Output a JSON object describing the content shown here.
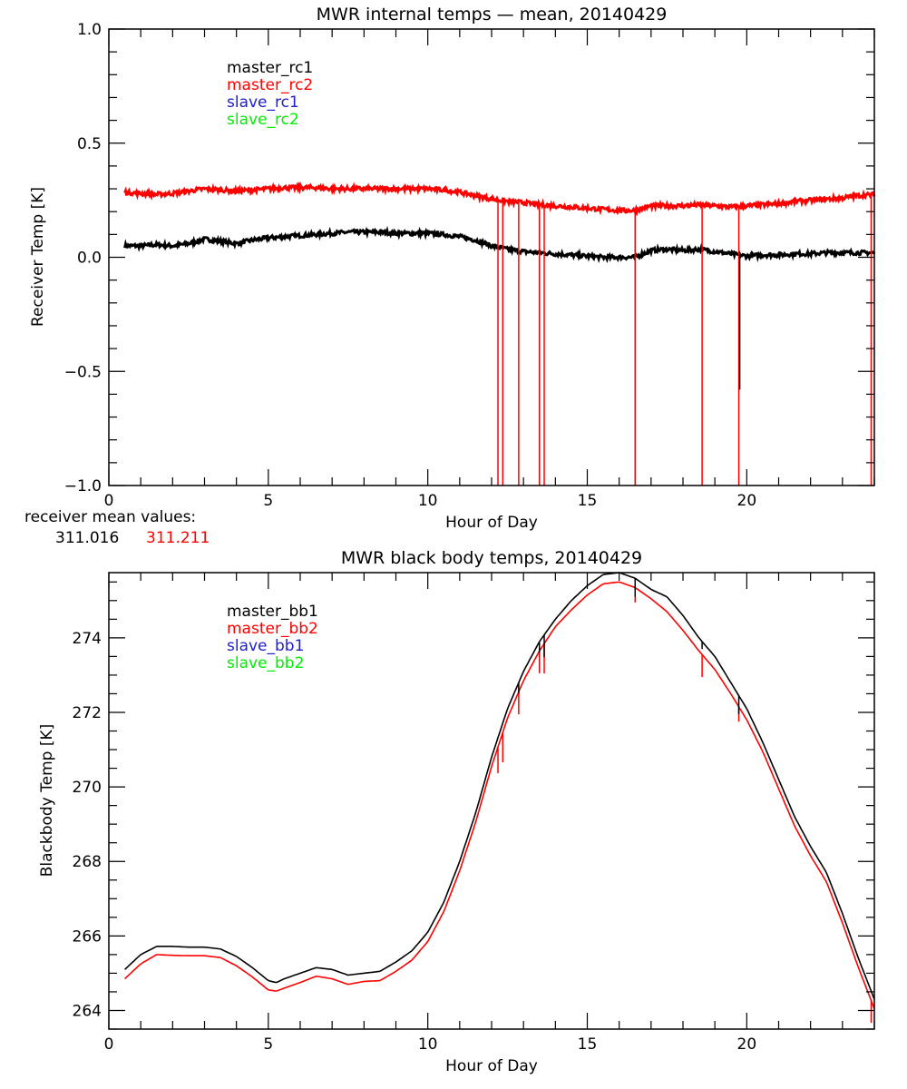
{
  "chart_data": [
    {
      "type": "line",
      "title": "MWR internal temps — mean, 20140429",
      "xlabel": "Hour of Day",
      "ylabel": "Receiver Temp [K]",
      "xlim": [
        0,
        24
      ],
      "ylim": [
        -1.0,
        1.0
      ],
      "xticks": [
        0,
        5,
        10,
        15,
        20
      ],
      "xtick_labels": [
        "0",
        "5",
        "10",
        "15",
        "20"
      ],
      "yticks": [
        -1.0,
        -0.5,
        0.0,
        0.5,
        1.0
      ],
      "ytick_labels": [
        "−1.0",
        "−0.5",
        "0.0",
        "0.5",
        "1.0"
      ],
      "grid": false,
      "legend_position": "top-left",
      "legend": [
        {
          "name": "master_rc1",
          "color": "#000000"
        },
        {
          "name": "master_rc2",
          "color": "#ff0000"
        },
        {
          "name": "slave_rc1",
          "color": "#2020d0"
        },
        {
          "name": "slave_rc2",
          "color": "#00ee00"
        }
      ],
      "series": [
        {
          "name": "master_rc1",
          "color": "#000000",
          "noisy": true,
          "x": [
            0.5,
            1.0,
            1.5,
            2.0,
            2.5,
            3.0,
            3.5,
            4.0,
            4.5,
            5.0,
            5.5,
            6.0,
            6.5,
            7.0,
            7.5,
            8.0,
            8.5,
            9.0,
            9.5,
            10.0,
            10.5,
            11.0,
            11.5,
            12.0,
            12.5,
            13.0,
            13.5,
            14.0,
            14.5,
            15.0,
            15.5,
            16.0,
            16.5,
            17.0,
            17.5,
            18.0,
            18.5,
            19.0,
            19.5,
            20.0,
            20.5,
            21.0,
            21.5,
            22.0,
            22.5,
            23.0,
            23.5,
            24.0
          ],
          "y": [
            0.05,
            0.05,
            0.055,
            0.05,
            0.06,
            0.08,
            0.07,
            0.06,
            0.075,
            0.085,
            0.09,
            0.095,
            0.1,
            0.105,
            0.11,
            0.11,
            0.11,
            0.105,
            0.105,
            0.105,
            0.1,
            0.09,
            0.075,
            0.05,
            0.035,
            0.025,
            0.02,
            0.015,
            0.01,
            0.005,
            0.0,
            0.0,
            0.0,
            0.03,
            0.035,
            0.03,
            0.035,
            0.025,
            0.015,
            0.005,
            0.01,
            0.01,
            0.015,
            0.015,
            0.02,
            0.02,
            0.02,
            0.02
          ]
        },
        {
          "name": "master_rc2",
          "color": "#ff0000",
          "noisy": true,
          "x": [
            0.5,
            1.0,
            1.5,
            2.0,
            2.5,
            3.0,
            3.5,
            4.0,
            4.5,
            5.0,
            5.5,
            6.0,
            6.5,
            7.0,
            7.5,
            8.0,
            8.5,
            9.0,
            9.5,
            10.0,
            10.5,
            11.0,
            11.5,
            12.0,
            12.5,
            13.0,
            13.5,
            14.0,
            14.5,
            15.0,
            15.5,
            16.0,
            16.5,
            17.0,
            17.5,
            18.0,
            18.5,
            19.0,
            19.5,
            20.0,
            20.5,
            21.0,
            21.5,
            22.0,
            22.5,
            23.0,
            23.5,
            24.0
          ],
          "y": [
            0.285,
            0.28,
            0.275,
            0.28,
            0.29,
            0.3,
            0.295,
            0.29,
            0.295,
            0.3,
            0.305,
            0.305,
            0.305,
            0.3,
            0.3,
            0.3,
            0.3,
            0.3,
            0.3,
            0.3,
            0.295,
            0.285,
            0.27,
            0.255,
            0.245,
            0.24,
            0.23,
            0.225,
            0.22,
            0.215,
            0.21,
            0.205,
            0.205,
            0.225,
            0.225,
            0.225,
            0.23,
            0.225,
            0.22,
            0.225,
            0.23,
            0.235,
            0.245,
            0.25,
            0.255,
            0.26,
            0.27,
            0.275
          ]
        }
      ],
      "spikes": [
        {
          "series": "master_rc2",
          "x": [
            12.2,
            12.35,
            12.85,
            13.5,
            13.65,
            16.5,
            18.6,
            19.75,
            23.9
          ],
          "to_y": -1.0
        },
        {
          "series": "master_rc1",
          "x": [
            19.78
          ],
          "to_y": -0.58
        }
      ],
      "annotation": {
        "label": "receiver mean values:",
        "values": [
          {
            "text": "311.016",
            "color": "#000000"
          },
          {
            "text": "311.211",
            "color": "#ff0000"
          }
        ]
      }
    },
    {
      "type": "line",
      "title": "MWR black body temps, 20140429",
      "xlabel": "Hour of Day",
      "ylabel": "Blackbody Temp [K]",
      "xlim": [
        0,
        24
      ],
      "ylim": [
        263.5,
        275.75
      ],
      "xticks": [
        0,
        5,
        10,
        15,
        20
      ],
      "xtick_labels": [
        "0",
        "5",
        "10",
        "15",
        "20"
      ],
      "yticks": [
        264,
        266,
        268,
        270,
        272,
        274
      ],
      "ytick_labels": [
        "264",
        "266",
        "268",
        "270",
        "272",
        "274"
      ],
      "grid": false,
      "legend_position": "top-left",
      "legend": [
        {
          "name": "master_bb1",
          "color": "#000000"
        },
        {
          "name": "master_bb2",
          "color": "#ff0000"
        },
        {
          "name": "slave_bb1",
          "color": "#2020d0"
        },
        {
          "name": "slave_bb2",
          "color": "#00ee00"
        }
      ],
      "series": [
        {
          "name": "master_bb1",
          "color": "#000000",
          "x": [
            0.5,
            1.0,
            1.5,
            2.0,
            2.5,
            3.0,
            3.5,
            4.0,
            4.5,
            5.0,
            5.25,
            5.5,
            6.0,
            6.5,
            7.0,
            7.5,
            8.0,
            8.5,
            9.0,
            9.5,
            10.0,
            10.5,
            11.0,
            11.5,
            12.0,
            12.5,
            13.0,
            13.5,
            14.0,
            14.5,
            15.0,
            15.5,
            16.0,
            16.5,
            17.0,
            17.5,
            18.0,
            18.5,
            19.0,
            19.5,
            20.0,
            20.5,
            21.0,
            21.5,
            22.0,
            22.5,
            23.0,
            23.5,
            24.0
          ],
          "y": [
            265.1,
            265.5,
            265.72,
            265.72,
            265.7,
            265.7,
            265.65,
            265.45,
            265.15,
            264.8,
            264.75,
            264.85,
            265.0,
            265.15,
            265.1,
            264.95,
            265.0,
            265.05,
            265.3,
            265.6,
            266.1,
            266.9,
            268.0,
            269.3,
            270.8,
            272.1,
            273.1,
            273.9,
            274.5,
            275.0,
            275.4,
            275.7,
            275.75,
            275.6,
            275.3,
            275.1,
            274.6,
            274.0,
            273.5,
            272.8,
            272.1,
            271.2,
            270.2,
            269.2,
            268.4,
            267.7,
            266.6,
            265.4,
            264.3
          ]
        },
        {
          "name": "master_bb2",
          "color": "#ff0000",
          "x": [
            0.5,
            1.0,
            1.5,
            2.0,
            2.5,
            3.0,
            3.5,
            4.0,
            4.5,
            5.0,
            5.25,
            5.5,
            6.0,
            6.5,
            7.0,
            7.5,
            8.0,
            8.5,
            9.0,
            9.5,
            10.0,
            10.5,
            11.0,
            11.5,
            12.0,
            12.5,
            13.0,
            13.5,
            14.0,
            14.5,
            15.0,
            15.5,
            16.0,
            16.5,
            17.0,
            17.5,
            18.0,
            18.5,
            19.0,
            19.5,
            20.0,
            20.5,
            21.0,
            21.5,
            22.0,
            22.5,
            23.0,
            23.5,
            24.0
          ],
          "y": [
            264.85,
            265.25,
            265.5,
            265.48,
            265.47,
            265.47,
            265.42,
            265.2,
            264.9,
            264.55,
            264.52,
            264.6,
            264.75,
            264.92,
            264.85,
            264.7,
            264.78,
            264.8,
            265.05,
            265.35,
            265.85,
            266.65,
            267.75,
            269.05,
            270.55,
            271.85,
            272.85,
            273.65,
            274.3,
            274.75,
            275.15,
            275.45,
            275.5,
            275.35,
            275.05,
            274.7,
            274.2,
            273.65,
            273.15,
            272.5,
            271.8,
            270.95,
            269.95,
            268.95,
            268.15,
            267.45,
            266.35,
            265.15,
            264.05
          ]
        }
      ],
      "spikes": [
        {
          "series": "master_bb2",
          "x": [
            12.2,
            12.35,
            12.85,
            13.5,
            13.65,
            16.5,
            18.6,
            19.75,
            23.9
          ],
          "depth_K": [
            0.7,
            0.8,
            0.6,
            0.6,
            0.8,
            0.4,
            0.6,
            0.4,
            0.6
          ]
        },
        {
          "series": "master_bb1",
          "x": [
            12.85,
            13.5,
            13.65,
            16.5,
            18.6,
            19.75
          ],
          "depth_K": [
            0.3,
            0.3,
            0.6,
            0.5,
            0.2,
            0.5
          ]
        }
      ]
    }
  ]
}
